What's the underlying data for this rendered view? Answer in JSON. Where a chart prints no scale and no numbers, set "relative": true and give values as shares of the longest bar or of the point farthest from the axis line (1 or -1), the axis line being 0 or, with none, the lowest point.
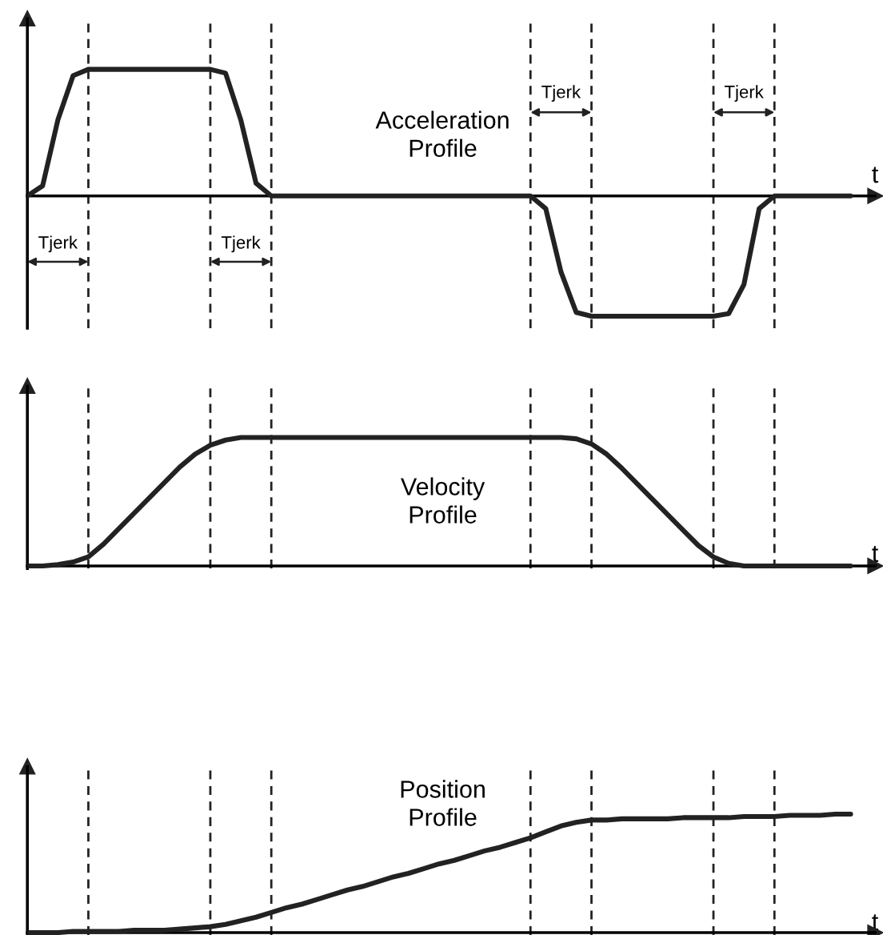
{
  "chart_data": [
    {
      "type": "line",
      "relative": true,
      "xlabel": "t",
      "categories": [
        null,
        null,
        null,
        null,
        null,
        null,
        null,
        null,
        null,
        null,
        null,
        null,
        null,
        null,
        null,
        null,
        null,
        null,
        null,
        null,
        null,
        null,
        null,
        null,
        null,
        null,
        null,
        null,
        null,
        null,
        null,
        null,
        null,
        null,
        null,
        null,
        null,
        null,
        null,
        null,
        null,
        null,
        null,
        null,
        null,
        null,
        null,
        null,
        null,
        null,
        null,
        null,
        null,
        null,
        null
      ],
      "series": [
        {
          "color": "#222222",
          "values": [
            0,
            0.08,
            0.6,
            0.95,
            1,
            1,
            1,
            1,
            1,
            1,
            1,
            1,
            1,
            0.97,
            0.6,
            0.1,
            0,
            0,
            0,
            0,
            0,
            0,
            0,
            0,
            0,
            0,
            0,
            0,
            0,
            0,
            0,
            0,
            0,
            0,
            -0.1,
            -0.6,
            -0.92,
            -0.95,
            -0.95,
            -0.95,
            -0.95,
            -0.95,
            -0.95,
            -0.95,
            -0.95,
            -0.95,
            -0.93,
            -0.7,
            -0.1,
            0,
            0,
            0,
            0,
            0,
            0
          ]
        }
      ],
      "annotations": [
        "Acceleration\nProfile",
        "Tjerk",
        "Tjerk",
        "Tjerk",
        "Tjerk"
      ],
      "grid": "x",
      "legend": false,
      "line_style": "solid",
      "marker": "none"
    },
    {
      "type": "line",
      "relative": true,
      "xlabel": "t",
      "categories": [
        null,
        null,
        null,
        null,
        null,
        null,
        null,
        null,
        null,
        null,
        null,
        null,
        null,
        null,
        null,
        null,
        null,
        null,
        null,
        null,
        null,
        null,
        null,
        null,
        null,
        null,
        null,
        null,
        null,
        null,
        null,
        null,
        null,
        null,
        null,
        null,
        null,
        null,
        null,
        null,
        null,
        null,
        null,
        null,
        null,
        null,
        null,
        null,
        null,
        null,
        null,
        null,
        null,
        null,
        null
      ],
      "series": [
        {
          "color": "#222222",
          "values": [
            0,
            0,
            0.01,
            0.03,
            0.07,
            0.17,
            0.29,
            0.41,
            0.53,
            0.65,
            0.77,
            0.87,
            0.94,
            0.98,
            1,
            1,
            1,
            1,
            1,
            1,
            1,
            1,
            1,
            1,
            1,
            1,
            1,
            1,
            1,
            1,
            1,
            1,
            1,
            1,
            1,
            1,
            0.99,
            0.95,
            0.87,
            0.76,
            0.64,
            0.52,
            0.4,
            0.28,
            0.16,
            0.07,
            0.02,
            0,
            0,
            0,
            0,
            0,
            0,
            0,
            0
          ]
        }
      ],
      "annotations": [
        "Velocity\nProfile"
      ],
      "grid": "x",
      "legend": false,
      "line_style": "solid",
      "marker": "none"
    },
    {
      "type": "line",
      "relative": true,
      "xlabel": "t",
      "categories": [
        null,
        null,
        null,
        null,
        null,
        null,
        null,
        null,
        null,
        null,
        null,
        null,
        null,
        null,
        null,
        null,
        null,
        null,
        null,
        null,
        null,
        null,
        null,
        null,
        null,
        null,
        null,
        null,
        null,
        null,
        null,
        null,
        null,
        null,
        null,
        null,
        null,
        null,
        null,
        null,
        null,
        null,
        null,
        null,
        null,
        null,
        null,
        null,
        null,
        null,
        null,
        null,
        null,
        null,
        null
      ],
      "series": [
        {
          "color": "#222222",
          "values": [
            0,
            0,
            0,
            0.01,
            0.01,
            0.01,
            0.01,
            0.02,
            0.02,
            0.02,
            0.03,
            0.04,
            0.05,
            0.07,
            0.1,
            0.13,
            0.17,
            0.21,
            0.24,
            0.28,
            0.32,
            0.36,
            0.39,
            0.43,
            0.47,
            0.5,
            0.54,
            0.58,
            0.61,
            0.65,
            0.69,
            0.72,
            0.76,
            0.8,
            0.85,
            0.9,
            0.93,
            0.95,
            0.95,
            0.96,
            0.96,
            0.96,
            0.96,
            0.97,
            0.97,
            0.97,
            0.97,
            0.98,
            0.98,
            0.98,
            0.99,
            0.99,
            0.99,
            1,
            1
          ]
        }
      ],
      "annotations": [
        "Position\nProfile"
      ],
      "grid": "x",
      "legend": false,
      "line_style": "solid",
      "marker": "none"
    }
  ]
}
